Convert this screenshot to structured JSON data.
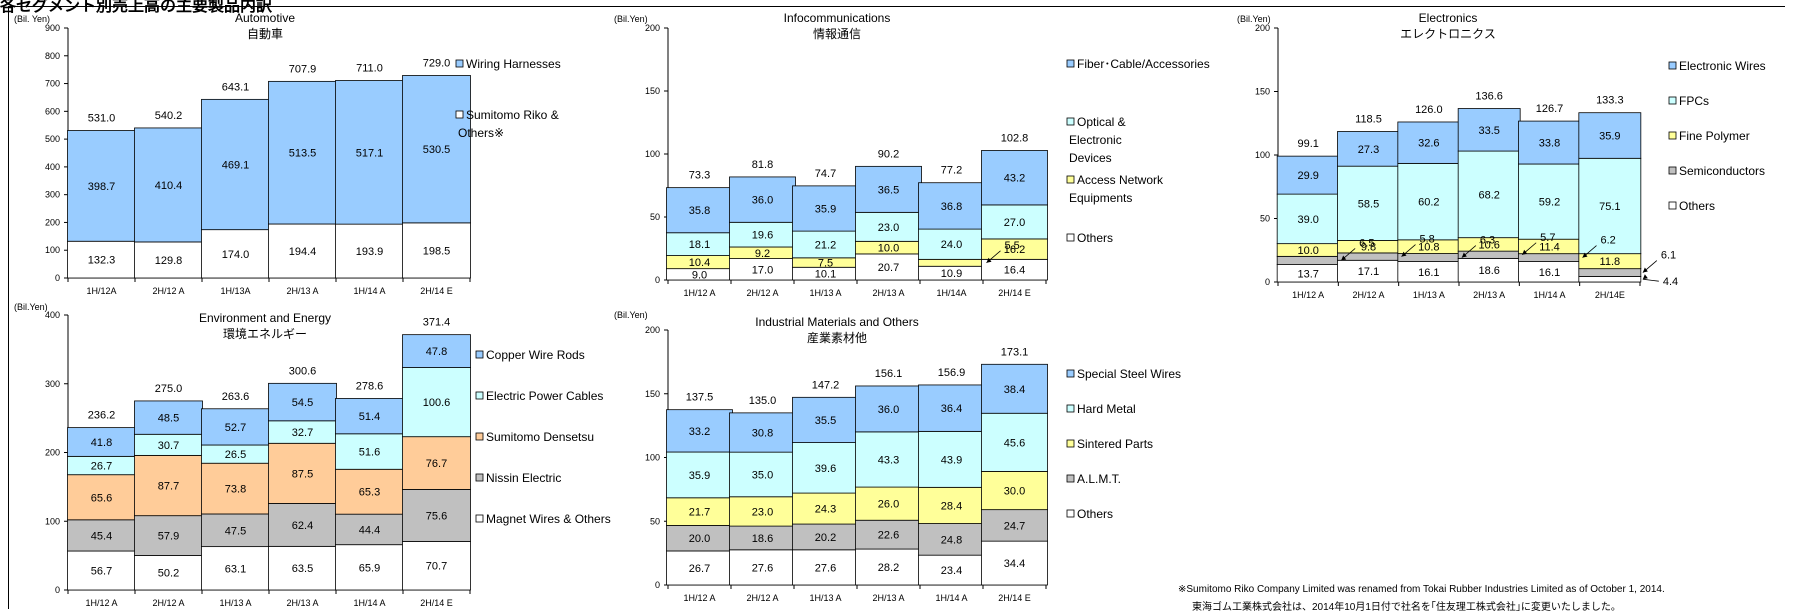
{
  "header_text": "各セグメント別売上高の主要製品内訳",
  "footnotes": {
    "en": "※Sumitomo Riko Company Limited was renamed from Tokai Rubber Industries Limited as of October 1, 2014.",
    "ja": "東海ゴム工業株式会社は、2014年10月1日付で社名を｢住友理工株式会社｣に変更いたしました。"
  },
  "colors": {
    "blue": "#99ccff",
    "cyan": "#ccffff",
    "yellow": "#ffff99",
    "orange": "#ffcc99",
    "gray": "#c0c0c0",
    "white": "#ffffff"
  },
  "chart_data": [
    {
      "type": "bar",
      "stacked": true,
      "title": "Automotive",
      "subtitle": "自動車",
      "unit_label": "(Bil. Yen)",
      "ylim": [
        0,
        900
      ],
      "yticks": [
        0,
        100,
        200,
        300,
        400,
        500,
        600,
        700,
        800,
        900
      ],
      "categories": [
        "1H/12A",
        "2H/12 A",
        "1H/13A",
        "2H/13 A",
        "1H/14 A",
        "2H/14 E"
      ],
      "series": [
        {
          "name": "Sumitomo Riko & Others※",
          "color": "white",
          "values": [
            132.3,
            129.8,
            174.0,
            194.4,
            193.9,
            198.5
          ]
        },
        {
          "name": "Wiring Harnesses",
          "color": "blue",
          "values": [
            398.7,
            410.4,
            469.1,
            513.5,
            517.1,
            530.5
          ]
        }
      ],
      "totals": [
        "531.0",
        "540.2",
        "643.1",
        "707.9",
        "711.0",
        "729.0"
      ],
      "legend": [
        {
          "name": "Wiring Harnesses",
          "color": "blue"
        },
        {
          "name": "Sumitomo Riko & Others※",
          "color": "white"
        }
      ]
    },
    {
      "type": "bar",
      "stacked": true,
      "title": "Infocommunications",
      "subtitle": "情報通信",
      "unit_label": "(Bil.Yen)",
      "ylim": [
        0,
        200
      ],
      "yticks": [
        0,
        50,
        100,
        150,
        200
      ],
      "categories": [
        "1H/12 A",
        "2H/12 A",
        "1H/13 A",
        "2H/13 A",
        "1H/14A",
        "2H/14 E"
      ],
      "series": [
        {
          "name": "Others",
          "color": "white",
          "values": [
            9.0,
            17.0,
            10.1,
            20.7,
            10.9,
            16.4
          ]
        },
        {
          "name": "Access Network Equipments",
          "color": "yellow",
          "values": [
            10.4,
            9.2,
            7.5,
            10.0,
            5.5,
            16.2
          ]
        },
        {
          "name": "Optical & Electronic Devices",
          "color": "cyan",
          "values": [
            18.1,
            19.6,
            21.2,
            23.0,
            24.0,
            27.0
          ]
        },
        {
          "name": "Fiber･Cable/Accessories",
          "color": "blue",
          "values": [
            35.8,
            36.0,
            35.9,
            36.5,
            36.8,
            43.2
          ]
        }
      ],
      "totals": [
        "73.3",
        "81.8",
        "74.7",
        "90.2",
        "77.2",
        "102.8"
      ],
      "callouts": [
        {
          "category_index": 4,
          "series_index": 1,
          "text": "5.5"
        }
      ],
      "legend": [
        {
          "name": "Fiber･Cable/Accessories",
          "color": "blue"
        },
        {
          "name": "Optical & Electronic Devices",
          "color": "cyan"
        },
        {
          "name": "Access Network Equipments",
          "color": "yellow"
        },
        {
          "name": "Others",
          "color": "white"
        }
      ]
    },
    {
      "type": "bar",
      "stacked": true,
      "title": "Electronics",
      "subtitle": "エレクトロニクス",
      "unit_label": "(Bil.Yen)",
      "ylim": [
        0,
        200
      ],
      "yticks": [
        0,
        50,
        100,
        150,
        200
      ],
      "categories": [
        "1H/12 A",
        "2H/12 A",
        "1H/13 A",
        "2H/13 A",
        "1H/14 A",
        "2H/14E"
      ],
      "series": [
        {
          "name": "Others",
          "color": "white",
          "values": [
            13.7,
            17.1,
            16.1,
            18.6,
            16.1,
            4.4
          ]
        },
        {
          "name": "Semiconductors",
          "color": "gray",
          "values": [
            6.5,
            5.8,
            6.3,
            5.7,
            6.2,
            6.1
          ]
        },
        {
          "name": "Fine Polymer",
          "color": "yellow",
          "values": [
            10.0,
            9.8,
            10.8,
            10.6,
            11.4,
            11.8
          ]
        },
        {
          "name": "FPCs",
          "color": "cyan",
          "values": [
            39.0,
            58.5,
            60.2,
            68.2,
            59.2,
            75.1
          ]
        },
        {
          "name": "Electronic Wires",
          "color": "blue",
          "values": [
            29.9,
            27.3,
            32.6,
            33.5,
            33.8,
            35.9
          ]
        }
      ],
      "totals": [
        "99.1",
        "118.5",
        "126.0",
        "136.6",
        "126.7",
        "133.3"
      ],
      "callouts": [
        {
          "category_index": 0,
          "series_index": 1,
          "text": "6.5"
        },
        {
          "category_index": 1,
          "series_index": 1,
          "text": "5.8"
        },
        {
          "category_index": 2,
          "series_index": 1,
          "text": "6.3"
        },
        {
          "category_index": 3,
          "series_index": 1,
          "text": "5.7"
        },
        {
          "category_index": 4,
          "series_index": 1,
          "text": "6.2"
        },
        {
          "category_index": 5,
          "series_index": 1,
          "text": "6.1"
        },
        {
          "category_index": 5,
          "series_index": 0,
          "text": "4.4"
        }
      ],
      "legend": [
        {
          "name": "Electronic Wires",
          "color": "blue"
        },
        {
          "name": "FPCs",
          "color": "cyan"
        },
        {
          "name": "Fine Polymer",
          "color": "yellow"
        },
        {
          "name": "Semiconductors",
          "color": "gray"
        },
        {
          "name": "Others",
          "color": "white"
        }
      ]
    },
    {
      "type": "bar",
      "stacked": true,
      "title": "Environment and Energy",
      "subtitle": "環境エネルギー",
      "unit_label": "(Bil.Yen)",
      "ylim": [
        0,
        400
      ],
      "yticks": [
        0,
        100,
        200,
        300,
        400
      ],
      "categories": [
        "1H/12 A",
        "2H/12 A",
        "1H/13 A",
        "2H/13 A",
        "1H/14 A",
        "2H/14 E"
      ],
      "series": [
        {
          "name": "Magnet Wires & Others",
          "color": "white",
          "values": [
            56.7,
            50.2,
            63.1,
            63.5,
            65.9,
            70.7
          ]
        },
        {
          "name": "Nissin Electric",
          "color": "gray",
          "values": [
            45.4,
            57.9,
            47.5,
            62.4,
            44.4,
            75.6
          ]
        },
        {
          "name": "Sumitomo Densetsu",
          "color": "orange",
          "values": [
            65.6,
            87.7,
            73.8,
            87.5,
            65.3,
            76.7
          ]
        },
        {
          "name": "Electric Power Cables",
          "color": "cyan",
          "values": [
            26.7,
            30.7,
            26.5,
            32.7,
            51.6,
            100.6
          ]
        },
        {
          "name": "Copper Wire Rods",
          "color": "blue",
          "values": [
            41.8,
            48.5,
            52.7,
            54.5,
            51.4,
            47.8
          ]
        }
      ],
      "totals": [
        "236.2",
        "275.0",
        "263.6",
        "300.6",
        "278.6",
        "371.4"
      ],
      "legend": [
        {
          "name": "Copper Wire Rods",
          "color": "blue"
        },
        {
          "name": "Electric Power Cables",
          "color": "cyan"
        },
        {
          "name": "Sumitomo Densetsu",
          "color": "orange"
        },
        {
          "name": "Nissin Electric",
          "color": "gray"
        },
        {
          "name": "Magnet Wires & Others",
          "color": "white"
        }
      ]
    },
    {
      "type": "bar",
      "stacked": true,
      "title": "Industrial Materials and Others",
      "subtitle": "産業素材他",
      "unit_label": "(Bil.Yen)",
      "ylim": [
        0,
        200
      ],
      "yticks": [
        0,
        50,
        100,
        150,
        200
      ],
      "categories": [
        "1H/12 A",
        "2H/12 A",
        "1H/13 A",
        "2H/13 A",
        "1H/14 A",
        "2H/14 E"
      ],
      "series": [
        {
          "name": "Others",
          "color": "white",
          "values": [
            26.7,
            27.6,
            27.6,
            28.2,
            23.4,
            34.4
          ]
        },
        {
          "name": "A.L.M.T.",
          "color": "gray",
          "values": [
            20.0,
            18.6,
            20.2,
            22.6,
            24.8,
            24.7
          ]
        },
        {
          "name": "Sintered Parts",
          "color": "yellow",
          "values": [
            21.7,
            23.0,
            24.3,
            26.0,
            28.4,
            30.0
          ]
        },
        {
          "name": "Hard Metal",
          "color": "cyan",
          "values": [
            35.9,
            35.0,
            39.6,
            43.3,
            43.9,
            45.6
          ]
        },
        {
          "name": "Special Steel Wires",
          "color": "blue",
          "values": [
            33.2,
            30.8,
            35.5,
            36.0,
            36.4,
            38.4
          ]
        }
      ],
      "totals": [
        "137.5",
        "135.0",
        "147.2",
        "156.1",
        "156.9",
        "173.1"
      ],
      "legend": [
        {
          "name": "Special Steel Wires",
          "color": "blue"
        },
        {
          "name": "Hard Metal",
          "color": "cyan"
        },
        {
          "name": "Sintered Parts",
          "color": "yellow"
        },
        {
          "name": "A.L.M.T.",
          "color": "gray"
        },
        {
          "name": "Others",
          "color": "white"
        }
      ]
    }
  ]
}
